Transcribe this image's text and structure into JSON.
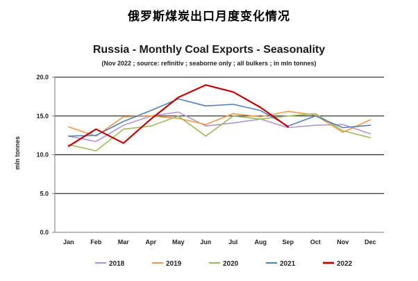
{
  "header": {
    "title": "俄罗斯煤炭出口月度变化情况"
  },
  "chart_data": {
    "type": "line",
    "title": "Russia - Monthly Coal Exports - Seasonality",
    "subtitle": "(Nov 2022 ; source: refinitiv ; seaborne only ; all bulkers ; in mln tonnes)",
    "xlabel": "",
    "ylabel": "mln tonnes",
    "ylim": [
      0,
      20
    ],
    "yticks": [
      0,
      5,
      10,
      15,
      20
    ],
    "ytick_labels": [
      "0.0",
      "5.0",
      "10.0",
      "15.0",
      "20.0"
    ],
    "grid": true,
    "legend_position": "bottom",
    "categories": [
      "Jan",
      "Feb",
      "Mar",
      "Apr",
      "May",
      "Jun",
      "Jul",
      "Aug",
      "Sep",
      "Oct",
      "Nov",
      "Dec"
    ],
    "series": [
      {
        "name": "2018",
        "color": "#b294d1",
        "width": 1.6,
        "values": [
          12.4,
          11.7,
          13.8,
          15.0,
          15.5,
          13.7,
          14.1,
          14.6,
          13.5,
          13.8,
          13.9,
          12.7
        ]
      },
      {
        "name": "2019",
        "color": "#f79646",
        "width": 1.6,
        "values": [
          13.6,
          12.4,
          14.9,
          15.0,
          14.7,
          13.9,
          15.3,
          14.9,
          15.6,
          15.1,
          12.9,
          14.5
        ]
      },
      {
        "name": "2020",
        "color": "#9bbb59",
        "width": 1.6,
        "values": [
          11.3,
          10.5,
          13.3,
          13.7,
          15.0,
          12.4,
          15.0,
          14.6,
          15.0,
          15.3,
          13.1,
          12.2
        ]
      },
      {
        "name": "2021",
        "color": "#4f81bd",
        "width": 1.6,
        "values": [
          12.4,
          12.5,
          14.3,
          15.7,
          17.2,
          16.3,
          16.5,
          15.7,
          13.7,
          15.0,
          13.5,
          13.8
        ]
      },
      {
        "name": "2022",
        "color": "#c00000",
        "width": 2.2,
        "values": [
          11.1,
          13.3,
          11.5,
          14.6,
          17.4,
          19.0,
          18.1,
          16.1,
          13.6,
          null,
          null,
          null
        ]
      }
    ]
  }
}
